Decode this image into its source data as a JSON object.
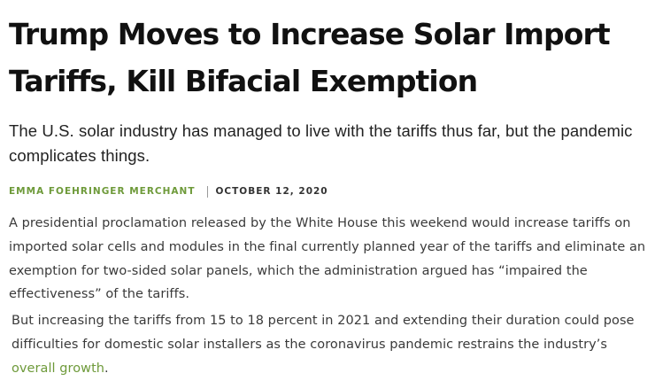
{
  "article": {
    "headline_line1": "Trump Moves to Increase Solar Import",
    "headline_line2": "Tariffs, Kill Bifacial Exemption",
    "dek": "The U.S. solar industry has managed to live with the tariffs thus far, but the pandemic complicates things.",
    "author": "Emma Foehringer Merchant",
    "date": "October 12, 2020",
    "paragraph1": "A presidential proclamation released by the White House this weekend would increase tariffs on imported solar cells and modules in the final currently planned year of the tariffs and eliminate an exemption for two-sided solar panels, which the administration argued has “impaired the effectiveness” of the tariffs.",
    "paragraph2_text": "But increasing the tariffs from 15 to 18 percent in 2021 and extending their duration could pose difficulties for domestic solar installers as the coronavirus pandemic restrains the industry’s ",
    "paragraph2_link": "overall growth",
    "paragraph2_end": "."
  },
  "colors": {
    "accent_green": "#6e9a3a",
    "headline": "#111111",
    "body_text": "#3a3a3a"
  }
}
